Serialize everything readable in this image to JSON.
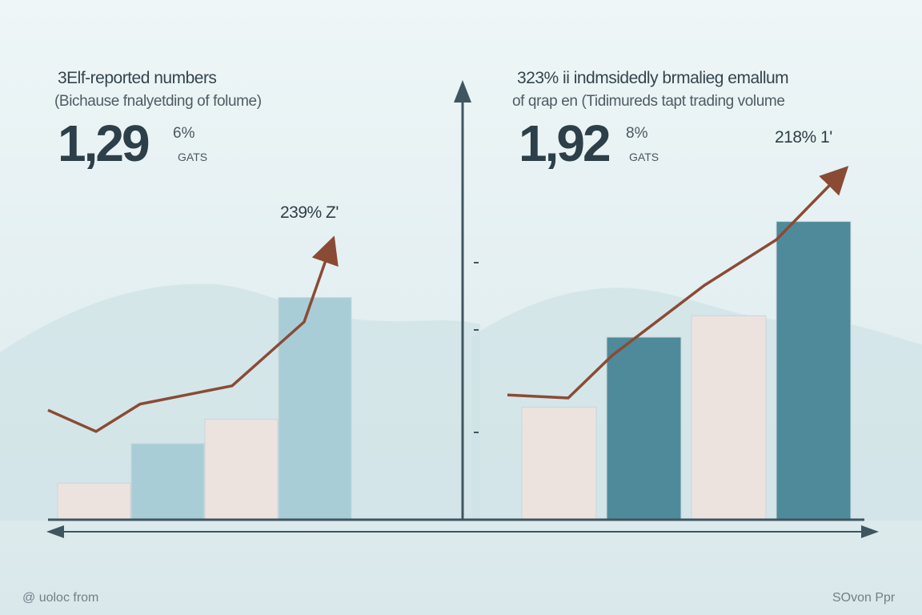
{
  "left_panel": {
    "heading": "3Elf-reported numbers",
    "subheading": "(Bichause fnalyetding of folume)",
    "big_value": "1,29",
    "small_pct": "6%",
    "unit": "GATS",
    "annotation": "239% Z'"
  },
  "right_panel": {
    "heading": "323% ii indmsidedly brmalieg emallum",
    "subheading": "of qrap en (Tidimureds tapt trading volume",
    "big_value": "1,92",
    "small_pct": "8%",
    "unit": "GATS",
    "annotation": "218% 1'"
  },
  "footer": {
    "left": "@ uoloc from",
    "right": "SOvon Ppr"
  },
  "colors": {
    "background_top": "#e9f3f4",
    "background_bottom": "#dbe9ec",
    "bar_light": "#ece3df",
    "bar_lightblue": "#a9cdd6",
    "bar_teal": "#4f8a9a",
    "trend_line": "#8a4b35",
    "axis": "#3f5560"
  },
  "chart_data": [
    {
      "type": "bar",
      "series": [
        {
          "values": [
            12,
            25,
            33,
            73
          ]
        }
      ],
      "trend_line": [
        36,
        29,
        38,
        44,
        65,
        89
      ],
      "ylim": [
        0,
        100
      ]
    },
    {
      "type": "bar",
      "series": [
        {
          "values": [
            37,
            60,
            67,
            98
          ]
        }
      ],
      "trend_line": [
        41,
        40,
        54,
        77,
        92,
        113
      ],
      "ylim": [
        0,
        100
      ]
    }
  ]
}
